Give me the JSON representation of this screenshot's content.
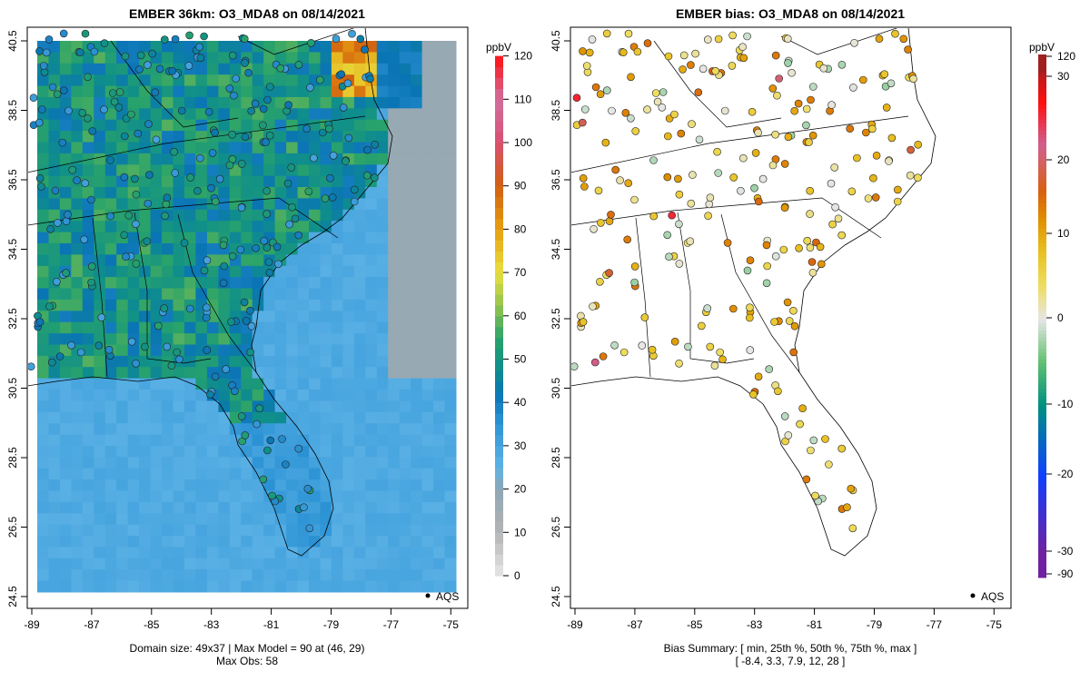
{
  "left_panel": {
    "title": "EMBER 36km: O3_MDA8 on 08/14/2021",
    "footer_line1": "Domain size: 49x37 | Max Model = 90 at (46, 29)",
    "footer_line2": "Max Obs: 58",
    "legend": "AQS",
    "colorbar": {
      "unit": "ppbV",
      "ticks": [
        "0",
        "10",
        "20",
        "30",
        "40",
        "50",
        "60",
        "70",
        "80",
        "90",
        "100",
        "110",
        "120"
      ]
    }
  },
  "right_panel": {
    "title": "EMBER bias: O3_MDA8 on 08/14/2021",
    "footer_line1": "Bias Summary: [ min, 25th %, 50th %, 75th %, max ]",
    "footer_line2": "[ -8.4,   3.3,   7.9,   12,   28 ]",
    "legend": "AQS",
    "colorbar": {
      "unit": "ppbV",
      "ticks": [
        "120",
        "30",
        "20",
        "10",
        "0",
        "-10",
        "-20",
        "-30",
        "-90"
      ]
    }
  },
  "axes": {
    "x_ticks": [
      "-89",
      "-87",
      "-85",
      "-83",
      "-81",
      "-79",
      "-77",
      "-75"
    ],
    "y_ticks": [
      "40.5",
      "38.5",
      "36.5",
      "34.5",
      "32.5",
      "30.5",
      "28.5",
      "26.5",
      "24.5"
    ]
  },
  "chart_data": [
    {
      "type": "heatmap",
      "title": "EMBER 36km: O3_MDA8 on 08/14/2021",
      "unit": "ppbV",
      "xlim": [
        -89,
        -75
      ],
      "ylim": [
        24.5,
        40.5
      ],
      "value_range": [
        0,
        120
      ],
      "domain_size": "49x37",
      "max_model": 90,
      "max_obs": 58
    },
    {
      "type": "scatter",
      "title": "EMBER bias: O3_MDA8 on 08/14/2021",
      "unit": "ppbV",
      "xlim": [
        -89,
        -75
      ],
      "ylim": [
        24.5,
        40.5
      ],
      "bias_summary": {
        "min": -8.4,
        "p25": 3.3,
        "p50": 7.9,
        "p75": 12,
        "max": 28
      }
    }
  ]
}
